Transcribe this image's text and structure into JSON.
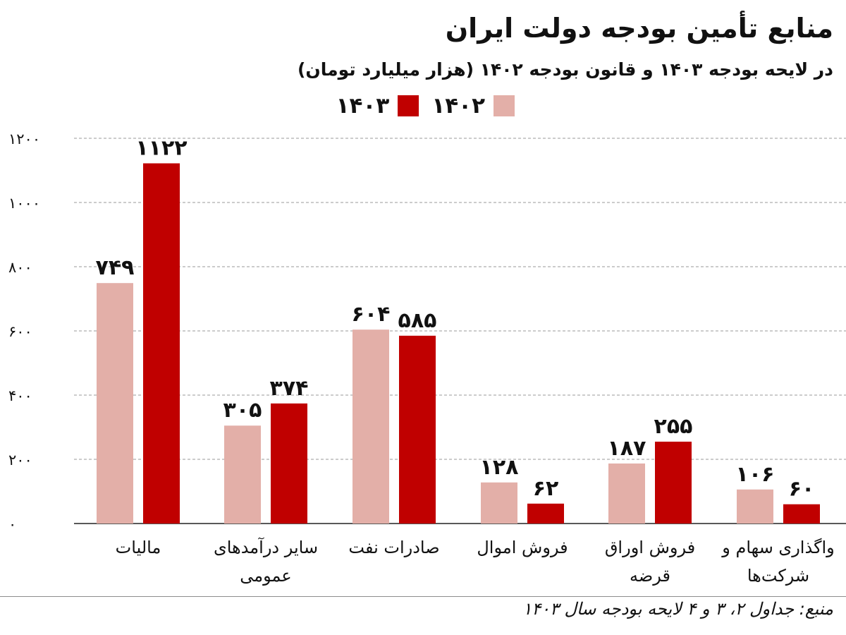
{
  "title": "منابع تأمین بودجه دولت ایران",
  "subtitle": "در لایحه بودجه ۱۴۰۳ و قانون بودجه ۱۴۰۲ (هزار میلیارد تومان)",
  "source": "منبع: جداول ۲، ۳ و ۴ لایحه بودجه سال ۱۴۰۳",
  "colors": {
    "series_1402": "#e3afa8",
    "series_1403": "#c00000",
    "gridline": "#9a9a9a",
    "baseline": "#222222",
    "text": "#111111"
  },
  "legend": [
    {
      "label": "۱۴۰۲",
      "color": "#e3afa8"
    },
    {
      "label": "۱۴۰۳",
      "color": "#c00000"
    }
  ],
  "chart_data": {
    "type": "bar",
    "title": "منابع تأمین بودجه دولت ایران",
    "subtitle": "در لایحه بودجه ۱۴۰۳ و قانون بودجه ۱۴۰۲ (هزار میلیارد تومان)",
    "xlabel": "",
    "ylabel": "",
    "ylim": [
      0,
      1200
    ],
    "yticks": [
      0,
      200,
      400,
      600,
      800,
      1000,
      1200
    ],
    "ytick_labels": [
      "۰",
      "۲۰۰",
      "۴۰۰",
      "۶۰۰",
      "۸۰۰",
      "۱۰۰۰",
      "۱۲۰۰"
    ],
    "grid": true,
    "legend_position": "top",
    "categories": [
      [
        "مالیات"
      ],
      [
        "سایر درآمدهای",
        "عمومی"
      ],
      [
        "صادرات نفت"
      ],
      [
        "فروش اموال"
      ],
      [
        "فروش اوراق",
        "قرضه"
      ],
      [
        "واگذاری سهام و",
        "شرکت‌ها"
      ]
    ],
    "series": [
      {
        "name": "۱۴۰۲",
        "color": "#e3afa8",
        "values": [
          749,
          305,
          604,
          128,
          187,
          106
        ],
        "labels": [
          "۷۴۹",
          "۳۰۵",
          "۶۰۴",
          "۱۲۸",
          "۱۸۷",
          "۱۰۶"
        ]
      },
      {
        "name": "۱۴۰۳",
        "color": "#c00000",
        "values": [
          1122,
          374,
          585,
          62,
          255,
          60
        ],
        "labels": [
          "۱۱۲۲",
          "۳۷۴",
          "۵۸۵",
          "۶۲",
          "۲۵۵",
          "۶۰"
        ]
      }
    ]
  }
}
